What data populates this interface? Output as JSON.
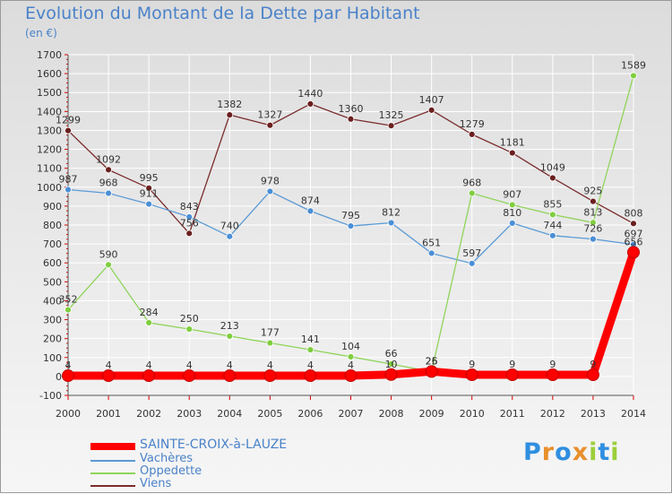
{
  "title": "Evolution du Montant de la Dette par Habitant",
  "unit": "(en €)",
  "brand": {
    "letters": [
      "P",
      "r",
      "o",
      "x",
      "i",
      "t",
      "i"
    ],
    "colors": [
      "#2f8fe0",
      "#e8902e",
      "#2f8fe0",
      "#e8902e",
      "#9bcf3a",
      "#2f8fe0",
      "#9bcf3a"
    ]
  },
  "chart_data": {
    "type": "line",
    "x": [
      "2000",
      "2001",
      "2002",
      "2003",
      "2004",
      "2005",
      "2006",
      "2007",
      "2008",
      "2009",
      "2010",
      "2011",
      "2012",
      "2013",
      "2014"
    ],
    "ylim": [
      -100,
      1700
    ],
    "yticks": [
      "-100",
      "0",
      "100",
      "200",
      "300",
      "400",
      "500",
      "600",
      "700",
      "800",
      "900",
      "1000",
      "1100",
      "1200",
      "1300",
      "1400",
      "1500",
      "1600",
      "1700"
    ],
    "grid": true,
    "legend": "bottom-left",
    "series": [
      {
        "name": "SAINTE-CROIX-à-LAUZE",
        "color": "#ff0000",
        "width": 9,
        "values": [
          4,
          4,
          4,
          4,
          4,
          4,
          4,
          4,
          10,
          26,
          9,
          9,
          9,
          9,
          656
        ],
        "labels": [
          "4",
          "4",
          "4",
          "4",
          "4",
          "4",
          "4",
          "4",
          "10",
          "26",
          "9",
          "9",
          "9",
          "9",
          "656"
        ]
      },
      {
        "name": "Vachères",
        "color": "#5a9ad6",
        "width": 1.3,
        "values": [
          987,
          968,
          911,
          843,
          740,
          978,
          874,
          795,
          812,
          651,
          597,
          810,
          744,
          726,
          697
        ],
        "labels": [
          "987",
          "968",
          "911",
          "843",
          "740",
          "978",
          "874",
          "795",
          "812",
          "651",
          "597",
          "810",
          "744",
          "726",
          "697"
        ]
      },
      {
        "name": "Oppedette",
        "color": "#8fd45a",
        "width": 1.3,
        "values": [
          352,
          590,
          284,
          250,
          213,
          177,
          141,
          104,
          66,
          25,
          968,
          907,
          855,
          813,
          1589
        ],
        "labels": [
          "352",
          "590",
          "284",
          "250",
          "213",
          "177",
          "141",
          "104",
          "66",
          "25",
          "968",
          "907",
          "855",
          "813",
          "1589"
        ]
      },
      {
        "name": "Viens",
        "color": "#7a2b2b",
        "width": 1.3,
        "values": [
          1299,
          1092,
          995,
          756,
          1382,
          1327,
          1440,
          1360,
          1325,
          1407,
          1279,
          1181,
          1049,
          925,
          808
        ],
        "labels": [
          "1299",
          "1092",
          "995",
          "756",
          "1382",
          "1327",
          "1440",
          "1360",
          "1325",
          "1407",
          "1279",
          "1181",
          "1049",
          "925",
          "808"
        ]
      }
    ]
  }
}
